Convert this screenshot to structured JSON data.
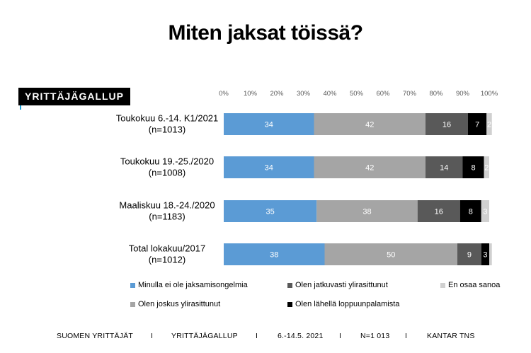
{
  "title": "Miten jaksat töissä?",
  "logo": "YRITTÄJÄGALLUP",
  "chart_data": {
    "type": "bar",
    "orientation": "horizontal",
    "stacked": true,
    "xlim": [
      0,
      100
    ],
    "x_ticks": [
      "0%",
      "10%",
      "20%",
      "30%",
      "40%",
      "50%",
      "60%",
      "70%",
      "80%",
      "90%",
      "100%"
    ],
    "categories": [
      [
        "Toukokuu 6.-14. K1/2021",
        "(n=1013)"
      ],
      [
        "Toukokuu 19.-25./2020",
        "(n=1008)"
      ],
      [
        "Maaliskuu 18.-24./2020",
        "(n=1183)"
      ],
      [
        "Total lokakuu/2017",
        "(n=1012)"
      ]
    ],
    "series": [
      {
        "name": "Minulla ei ole jaksamisongelmia",
        "color": "#5b9bd5",
        "label_color": "#ffffff",
        "values": [
          34,
          34,
          35,
          38
        ]
      },
      {
        "name": "Olen joskus ylirasittunut",
        "color": "#a5a5a5",
        "label_color": "#ffffff",
        "values": [
          42,
          42,
          38,
          50
        ]
      },
      {
        "name": "Olen jatkuvasti ylirasittunut",
        "color": "#595959",
        "label_color": "#ffffff",
        "values": [
          16,
          14,
          16,
          9
        ]
      },
      {
        "name": "Olen lähellä loppuunpalamista",
        "color": "#000000",
        "label_color": "#ffffff",
        "values": [
          7,
          8,
          8,
          3
        ]
      },
      {
        "name": "En osaa sanoa",
        "color": "#d0d0d0",
        "label_color": "#ffffff",
        "values": [
          2,
          2,
          3,
          1
        ]
      }
    ],
    "data_labels_shown": [
      [
        true,
        true,
        true,
        true,
        true
      ],
      [
        true,
        true,
        true,
        true,
        true
      ],
      [
        true,
        true,
        true,
        true,
        true
      ],
      [
        true,
        true,
        true,
        true,
        false
      ]
    ],
    "legend_position": "bottom"
  },
  "legend": [
    {
      "label": "Minulla ei ole jaksamisongelmia",
      "color": "#5b9bd5"
    },
    {
      "label": "Olen jatkuvasti ylirasittunut",
      "color": "#595959"
    },
    {
      "label": "En osaa sanoa",
      "color": "#d0d0d0"
    },
    {
      "label": "Olen joskus ylirasittunut",
      "color": "#a5a5a5"
    },
    {
      "label": "Olen lähellä loppuunpalamista",
      "color": "#000000"
    }
  ],
  "footer": {
    "source": "SUOMEN YRITTÄJÄT",
    "sep1": "I",
    "survey": "YRITTÄJÄGALLUP",
    "sep2": "I",
    "dates": "6.-14.5. 2021",
    "sep3": "I",
    "n": "N=1 013",
    "sep4": "I",
    "provider": "KANTAR TNS"
  }
}
